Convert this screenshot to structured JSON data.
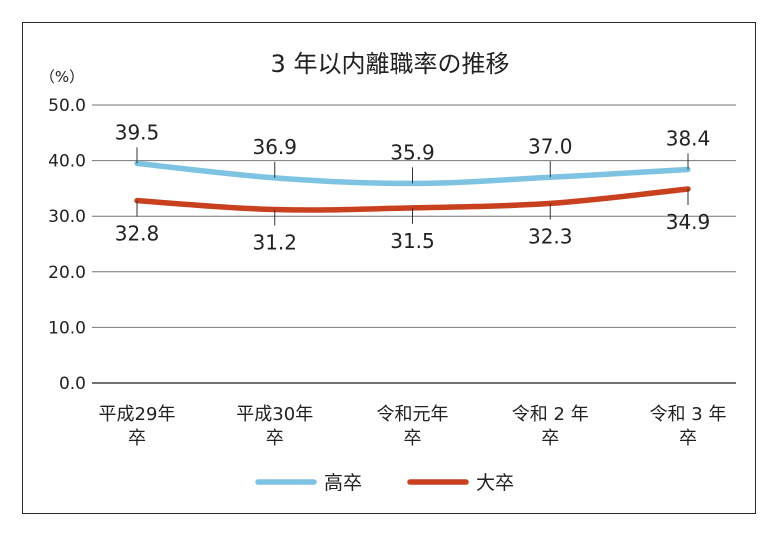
{
  "chart_data": {
    "type": "line",
    "title": "3 年以内離職率の推移",
    "unit_label": "（%）",
    "ylim": [
      0,
      50
    ],
    "yticks": [
      "0.0",
      "10.0",
      "20.0",
      "30.0",
      "40.0",
      "50.0"
    ],
    "categories": [
      [
        "平成29年",
        "卒"
      ],
      [
        "平成30年",
        "卒"
      ],
      [
        "令和元年",
        "卒"
      ],
      [
        "令和 2 年",
        "卒"
      ],
      [
        "令和 3 年",
        "卒"
      ]
    ],
    "series": [
      {
        "name": "高卒",
        "color": "#7ec4e2",
        "values": [
          39.5,
          36.9,
          35.9,
          37.0,
          38.4
        ],
        "labels": [
          "39.5",
          "36.9",
          "35.9",
          "37.0",
          "38.4"
        ]
      },
      {
        "name": "大卒",
        "color": "#c8401e",
        "values": [
          32.8,
          31.2,
          31.5,
          32.3,
          34.9
        ],
        "labels": [
          "32.8",
          "31.2",
          "31.5",
          "32.3",
          "34.9"
        ]
      }
    ],
    "legend": "bottom",
    "grid": true
  }
}
